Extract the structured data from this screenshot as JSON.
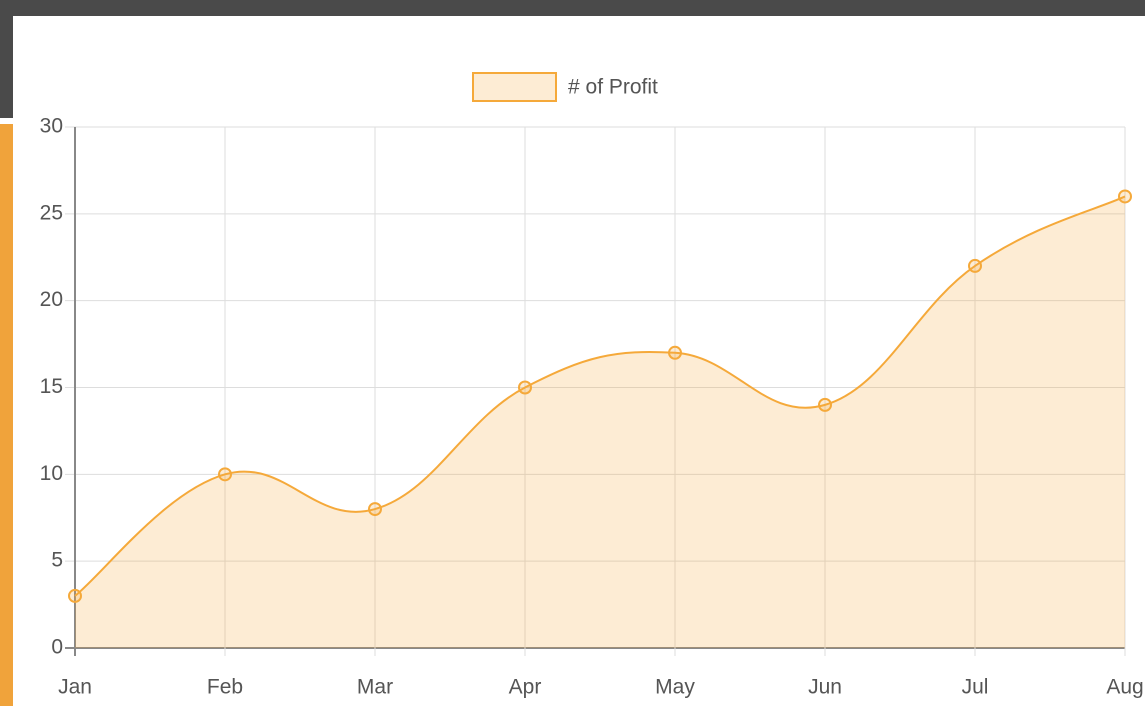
{
  "chart_data": {
    "type": "line",
    "categories": [
      "Jan",
      "Feb",
      "Mar",
      "Apr",
      "May",
      "Jun",
      "Jul",
      "Aug"
    ],
    "series": [
      {
        "name": "# of Profit",
        "color": "#f5a93a",
        "fill": "rgba(245,169,58,0.22)",
        "values": [
          3,
          10,
          8,
          15,
          17,
          14,
          22,
          26
        ]
      }
    ],
    "ylim": [
      0,
      30
    ],
    "yticks": [
      0,
      5,
      10,
      15,
      20,
      25,
      30
    ],
    "grid": true,
    "legend": "top"
  }
}
